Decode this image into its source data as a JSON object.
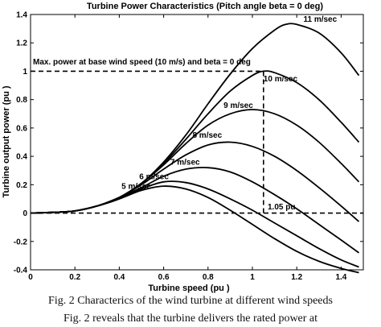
{
  "chart_data": {
    "type": "line",
    "title": "Turbine Power Characteristics (Pitch angle beta = 0 deg)",
    "xlabel": "Turbine speed (pu )",
    "ylabel": "Turbine output power (pu )",
    "xlim": [
      0,
      1.5
    ],
    "ylim": [
      -0.4,
      1.4
    ],
    "x_ticks": [
      "0",
      "0.2",
      "0.4",
      "0.6",
      "0.8",
      "1",
      "1.2",
      "1.4"
    ],
    "y_ticks": [
      "-0.4",
      "-0.2",
      "0",
      "0.2",
      "0.4",
      "0.6",
      "0.8",
      "1",
      "1.2",
      "1.4"
    ],
    "grid": false,
    "reference_lines": {
      "base_power": 1,
      "zero": 0,
      "base_speed": 1.05
    },
    "annotations": {
      "max_power": "Max. power at base wind speed (10 m/s) and beta = 0 deg",
      "speed_at_max": "1.05 pu"
    },
    "series": [
      {
        "name": "5 m/sec",
        "x": [
          0,
          0.1,
          0.2,
          0.3,
          0.4,
          0.5,
          0.6,
          0.7,
          0.8,
          0.9,
          1.0,
          1.1,
          1.2,
          1.3,
          1.4,
          1.48
        ],
        "y": [
          0,
          0.005,
          0.015,
          0.05,
          0.1,
          0.16,
          0.19,
          0.17,
          0.11,
          0.02,
          -0.08,
          -0.18,
          -0.27,
          -0.34,
          -0.39,
          -0.42
        ]
      },
      {
        "name": "6 m/sec",
        "x": [
          0,
          0.1,
          0.2,
          0.3,
          0.4,
          0.5,
          0.6,
          0.7,
          0.8,
          0.9,
          1.0,
          1.1,
          1.2,
          1.3,
          1.4,
          1.48
        ],
        "y": [
          0,
          0.005,
          0.015,
          0.05,
          0.1,
          0.17,
          0.22,
          0.215,
          0.17,
          0.1,
          0.02,
          -0.07,
          -0.16,
          -0.25,
          -0.33,
          -0.38
        ]
      },
      {
        "name": "7 m/sec",
        "x": [
          0,
          0.1,
          0.2,
          0.3,
          0.4,
          0.5,
          0.6,
          0.7,
          0.8,
          0.9,
          1.0,
          1.1,
          1.2,
          1.3,
          1.4,
          1.48
        ],
        "y": [
          0,
          0.005,
          0.015,
          0.05,
          0.11,
          0.18,
          0.26,
          0.31,
          0.32,
          0.29,
          0.22,
          0.13,
          0.03,
          -0.08,
          -0.19,
          -0.28
        ]
      },
      {
        "name": "8 m/sec",
        "x": [
          0,
          0.1,
          0.2,
          0.3,
          0.4,
          0.5,
          0.6,
          0.7,
          0.8,
          0.9,
          1.0,
          1.1,
          1.2,
          1.3,
          1.4,
          1.48
        ],
        "y": [
          0,
          0.005,
          0.015,
          0.05,
          0.11,
          0.2,
          0.31,
          0.41,
          0.48,
          0.5,
          0.47,
          0.4,
          0.3,
          0.18,
          0.05,
          -0.06
        ]
      },
      {
        "name": "9 m/sec",
        "x": [
          0,
          0.1,
          0.2,
          0.3,
          0.4,
          0.5,
          0.6,
          0.7,
          0.8,
          0.9,
          1.0,
          1.1,
          1.2,
          1.3,
          1.4,
          1.48
        ],
        "y": [
          0,
          0.005,
          0.015,
          0.05,
          0.11,
          0.21,
          0.34,
          0.49,
          0.62,
          0.7,
          0.73,
          0.7,
          0.62,
          0.5,
          0.35,
          0.22
        ]
      },
      {
        "name": "10 m/sec",
        "x": [
          0,
          0.1,
          0.2,
          0.3,
          0.4,
          0.5,
          0.6,
          0.7,
          0.8,
          0.9,
          1.0,
          1.05,
          1.1,
          1.2,
          1.3,
          1.4,
          1.48
        ],
        "y": [
          0,
          0.005,
          0.015,
          0.05,
          0.11,
          0.21,
          0.35,
          0.52,
          0.7,
          0.86,
          0.97,
          1.0,
          0.99,
          0.92,
          0.8,
          0.64,
          0.5
        ]
      },
      {
        "name": "11 m/sec",
        "x": [
          0,
          0.1,
          0.2,
          0.3,
          0.4,
          0.5,
          0.6,
          0.7,
          0.8,
          0.9,
          1.0,
          1.1,
          1.15,
          1.2,
          1.3,
          1.4,
          1.48
        ],
        "y": [
          0,
          0.005,
          0.015,
          0.05,
          0.11,
          0.21,
          0.36,
          0.55,
          0.77,
          0.98,
          1.16,
          1.29,
          1.33,
          1.33,
          1.27,
          1.13,
          0.97
        ]
      }
    ]
  },
  "caption": "Fig. 2 Characterics of the wind turbine at different wind speeds",
  "body_text": "Fig. 2 reveals that the turbine delivers the rated power at"
}
